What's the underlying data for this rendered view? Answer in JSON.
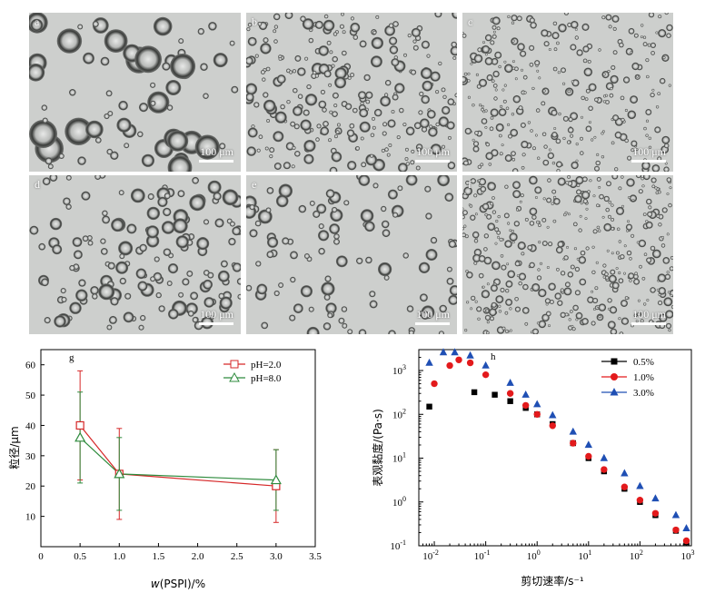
{
  "micrographs": [
    {
      "label": "a",
      "scale_label": "100 μm",
      "density": "large sparse droplets"
    },
    {
      "label": "b",
      "scale_label": "100 μm",
      "density": "many medium droplets"
    },
    {
      "label": "c",
      "scale_label": "100 μm",
      "density": "many small droplets"
    },
    {
      "label": "d",
      "scale_label": "100 μm",
      "density": "medium droplets"
    },
    {
      "label": "e",
      "scale_label": "100 μm",
      "density": "sparse medium droplets"
    },
    {
      "label": "f",
      "scale_label": "100 μm",
      "density": "dense small droplets"
    }
  ],
  "chart_data": [
    {
      "type": "line",
      "panel_label": "g",
      "xlabel_italic": "w",
      "xlabel_rest": "(PSPI)/%",
      "ylabel": "粒径/μm",
      "xlim": [
        0,
        3.5
      ],
      "ylim": [
        0,
        65
      ],
      "xticks": [
        "0",
        "0.5",
        "1.0",
        "1.5",
        "2.0",
        "2.5",
        "3.0",
        "3.5"
      ],
      "yticks": [
        "10",
        "20",
        "30",
        "40",
        "50",
        "60"
      ],
      "legend_position": "top-right",
      "series": [
        {
          "name": "pH=2.0",
          "color": "#d62728",
          "marker": "square",
          "x": [
            0.5,
            1.0,
            3.0
          ],
          "y": [
            40,
            24,
            20
          ],
          "err": [
            18,
            15,
            12
          ]
        },
        {
          "name": "pH=8.0",
          "color": "#2e8b3d",
          "marker": "triangle",
          "x": [
            0.5,
            1.0,
            3.0
          ],
          "y": [
            36,
            24,
            22
          ],
          "err": [
            15,
            12,
            10
          ]
        }
      ]
    },
    {
      "type": "scatter",
      "panel_label": "h",
      "scale": "log-log",
      "xlabel": "剪切速率/s⁻¹",
      "ylabel": "表观黏度/(Pa·s)",
      "xlim": [
        0.005,
        1000
      ],
      "ylim": [
        0.1,
        3000
      ],
      "xticks": [
        {
          "b": "10",
          "e": "-2"
        },
        {
          "b": "10",
          "e": "-1"
        },
        {
          "b": "10",
          "e": "0"
        },
        {
          "b": "10",
          "e": "1"
        },
        {
          "b": "10",
          "e": "2"
        },
        {
          "b": "10",
          "e": "3"
        }
      ],
      "yticks": [
        {
          "b": "10",
          "e": "-1"
        },
        {
          "b": "10",
          "e": "0"
        },
        {
          "b": "10",
          "e": "1"
        },
        {
          "b": "10",
          "e": "2"
        },
        {
          "b": "10",
          "e": "3"
        }
      ],
      "legend_position": "top-right",
      "series": [
        {
          "name": "0.5%",
          "color": "#000000",
          "marker": "square",
          "x": [
            0.008,
            0.06,
            0.15,
            0.3,
            0.6,
            1,
            2,
            5,
            10,
            20,
            50,
            100,
            200,
            500,
            800
          ],
          "y": [
            150,
            320,
            280,
            200,
            140,
            100,
            60,
            22,
            10,
            5,
            2,
            1,
            0.5,
            0.22,
            0.12
          ]
        },
        {
          "name": "1.0%",
          "color": "#e31a1c",
          "marker": "circle",
          "x": [
            0.01,
            0.02,
            0.03,
            0.05,
            0.1,
            0.3,
            0.6,
            1,
            2,
            5,
            10,
            20,
            50,
            100,
            200,
            500,
            800
          ],
          "y": [
            500,
            1300,
            1750,
            1500,
            800,
            300,
            160,
            100,
            55,
            22,
            11,
            5.5,
            2.2,
            1.1,
            0.55,
            0.23,
            0.13
          ]
        },
        {
          "name": "3.0%",
          "color": "#1f4fb4",
          "marker": "triangle",
          "x": [
            0.008,
            0.015,
            0.025,
            0.05,
            0.1,
            0.3,
            0.6,
            1,
            2,
            5,
            10,
            20,
            50,
            100,
            200,
            500,
            800
          ],
          "y": [
            1500,
            2600,
            2600,
            2200,
            1300,
            520,
            280,
            170,
            95,
            40,
            20,
            10,
            4.5,
            2.3,
            1.2,
            0.5,
            0.25
          ]
        }
      ]
    }
  ]
}
